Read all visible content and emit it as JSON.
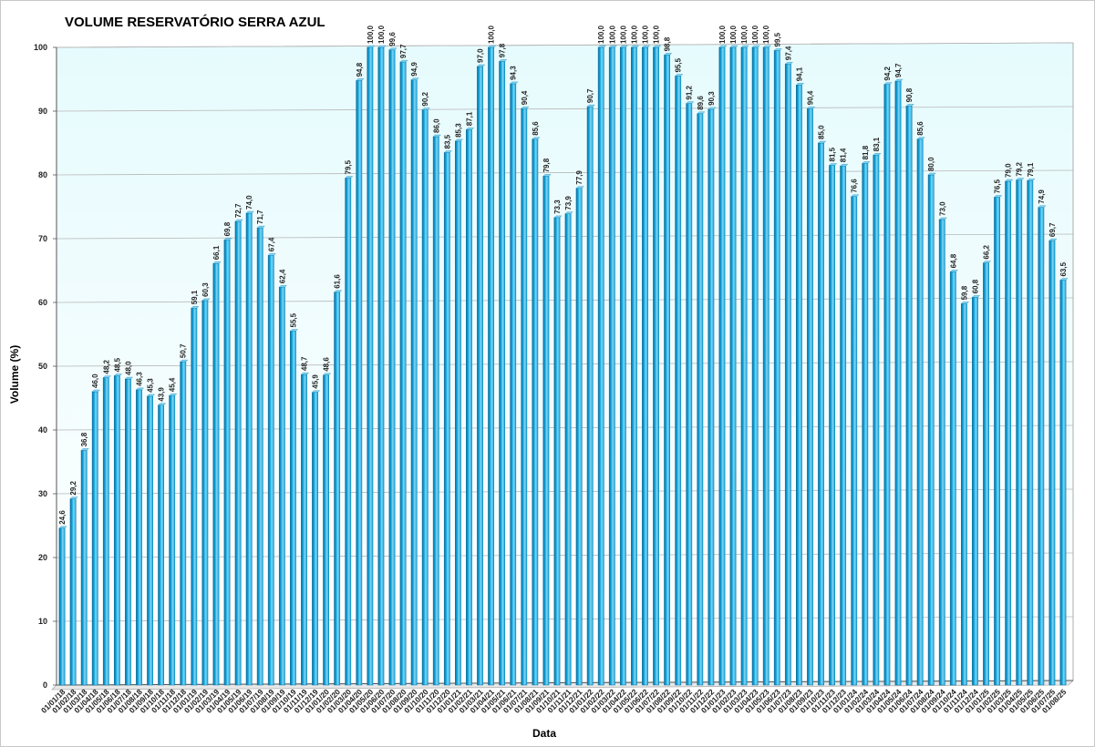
{
  "chart_data": {
    "type": "bar",
    "title": "VOLUME RESERVATÓRIO SERRA AZUL",
    "xlabel": "Data",
    "ylabel": "Volume (%)",
    "ylim": [
      0,
      100
    ],
    "yticks": [
      0,
      10,
      20,
      30,
      40,
      50,
      60,
      70,
      80,
      90,
      100
    ],
    "grid": true,
    "legend": "none",
    "colors": {
      "bar": "#14a8e0",
      "bar_top": "#7fd6f5",
      "bar_edge": "#0a6f9e",
      "plot_bg_top": "#ffffff",
      "plot_bg_bottom": "#e6fbfd",
      "grid": "#b8b8b8"
    },
    "categories": [
      "01/01/18",
      "01/02/18",
      "01/03/18",
      "01/04/18",
      "01/05/18",
      "01/06/18",
      "01/07/18",
      "01/08/18",
      "01/09/18",
      "01/10/18",
      "01/11/18",
      "01/12/18",
      "01/01/19",
      "01/02/19",
      "01/03/19",
      "01/04/19",
      "01/05/19",
      "01/06/19",
      "01/07/19",
      "01/08/19",
      "01/09/19",
      "01/10/19",
      "01/11/19",
      "01/12/19",
      "01/01/20",
      "01/02/20",
      "01/03/20",
      "01/04/20",
      "01/05/20",
      "01/06/20",
      "01/07/20",
      "01/08/20",
      "01/09/20",
      "01/10/20",
      "01/11/20",
      "01/12/20",
      "01/01/21",
      "01/02/21",
      "01/03/21",
      "01/04/21",
      "01/05/21",
      "01/06/21",
      "01/07/21",
      "01/08/21",
      "01/09/21",
      "01/10/21",
      "01/11/21",
      "01/12/21",
      "01/01/22",
      "01/02/22",
      "01/03/22",
      "01/04/22",
      "01/05/22",
      "01/06/22",
      "01/07/22",
      "01/08/22",
      "01/09/22",
      "01/10/22",
      "01/11/22",
      "01/12/22",
      "01/01/23",
      "01/02/23",
      "01/03/23",
      "01/04/23",
      "01/05/23",
      "01/06/23",
      "01/07/23",
      "01/08/23",
      "01/09/23",
      "01/10/23",
      "01/11/23",
      "01/12/23",
      "01/01/24",
      "01/02/24",
      "01/03/24",
      "01/04/24",
      "01/05/24",
      "01/06/24",
      "01/07/24",
      "01/08/24",
      "01/09/24",
      "01/10/24",
      "01/11/24",
      "01/12/24",
      "01/01/25",
      "01/02/25",
      "01/03/25",
      "01/04/25",
      "01/05/25",
      "01/06/25",
      "01/07/25",
      "01/08/25"
    ],
    "values": [
      24.6,
      29.2,
      36.8,
      46.0,
      48.2,
      48.5,
      48.0,
      46.3,
      45.3,
      43.9,
      45.4,
      50.7,
      59.1,
      60.3,
      66.1,
      69.8,
      72.7,
      74.0,
      71.7,
      67.4,
      62.4,
      55.5,
      48.7,
      45.9,
      48.6,
      61.6,
      79.5,
      94.8,
      100.0,
      100.0,
      99.6,
      97.7,
      94.9,
      90.2,
      86.0,
      83.5,
      85.3,
      87.1,
      97.0,
      100.0,
      97.8,
      94.3,
      90.4,
      85.6,
      79.8,
      73.3,
      73.9,
      77.9,
      90.7,
      100.0,
      100.0,
      100.0,
      100.0,
      100.0,
      100.0,
      98.8,
      95.5,
      91.2,
      89.6,
      90.3,
      100.0,
      100.0,
      100.0,
      100.0,
      100.0,
      99.5,
      97.4,
      94.1,
      90.4,
      85.0,
      81.5,
      81.4,
      76.6,
      81.8,
      83.1,
      94.2,
      94.7,
      90.8,
      85.6,
      80.0,
      73.0,
      64.8,
      59.8,
      60.8,
      66.2,
      76.5,
      79.0,
      79.2,
      79.1,
      74.9,
      69.7,
      63.5
    ],
    "value_labels": [
      "24,6",
      "29,2",
      "36,8",
      "46,0",
      "48,2",
      "48,5",
      "48,0",
      "46,3",
      "45,3",
      "43,9",
      "45,4",
      "50,7",
      "59,1",
      "60,3",
      "66,1",
      "69,8",
      "72,7",
      "74,0",
      "71,7",
      "67,4",
      "62,4",
      "55,5",
      "48,7",
      "45,9",
      "48,6",
      "61,6",
      "79,5",
      "94,8",
      "100,0",
      "100,0",
      "99,6",
      "97,7",
      "94,9",
      "90,2",
      "86,0",
      "83,5",
      "85,3",
      "87,1",
      "97,0",
      "100,0",
      "97,8",
      "94,3",
      "90,4",
      "85,6",
      "79,8",
      "73,3",
      "73,9",
      "77,9",
      "90,7",
      "100,0",
      "100,0",
      "100,0",
      "100,0",
      "100,0",
      "100,0",
      "98,8",
      "95,5",
      "91,2",
      "89,6",
      "90,3",
      "100,0",
      "100,0",
      "100,0",
      "100,0",
      "100,0",
      "99,5",
      "97,4",
      "94,1",
      "90,4",
      "85,0",
      "81,5",
      "81,4",
      "76,6",
      "81,8",
      "83,1",
      "94,2",
      "94,7",
      "90,8",
      "85,6",
      "80,0",
      "73,0",
      "64,8",
      "59,8",
      "60,8",
      "66,2",
      "76,5",
      "79,0",
      "79,2",
      "79,1",
      "74,9",
      "69,7",
      "63,5"
    ]
  }
}
